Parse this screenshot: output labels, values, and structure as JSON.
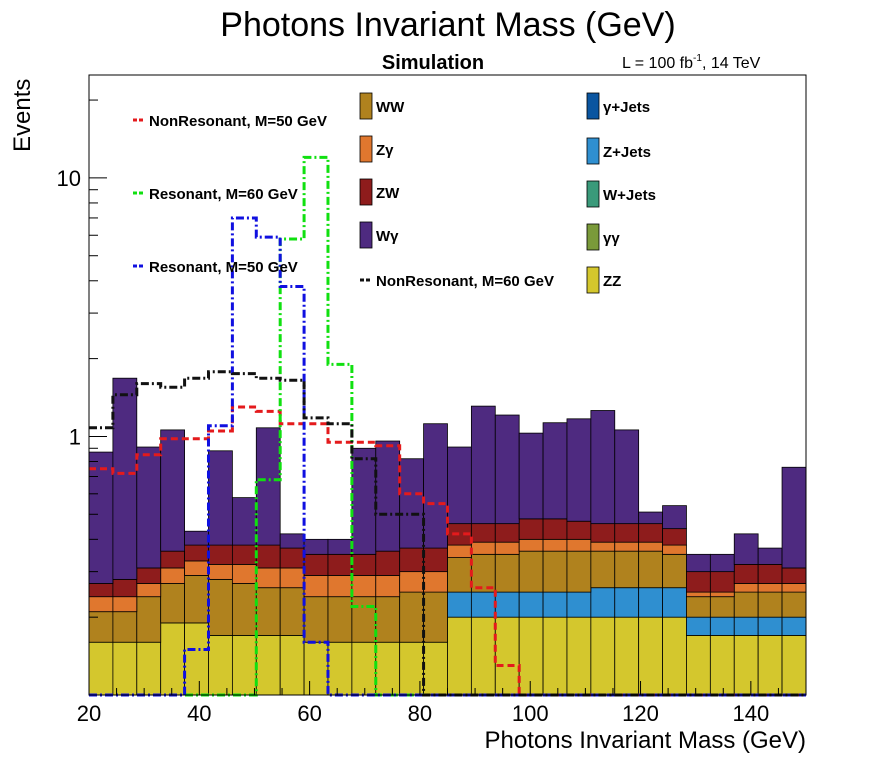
{
  "chart_data": {
    "type": "bar",
    "stacked": true,
    "title": "Photons Invariant Mass (GeV)",
    "subtitle": "Simulation",
    "lumi_label": "L = 100 fb",
    "lumi_sup": "-1",
    "lumi_rest": ", 14 TeV",
    "xlabel": "Photons Invariant Mass (GeV)",
    "ylabel": "Events",
    "xlim": [
      20,
      150
    ],
    "ylim": [
      0.1,
      25
    ],
    "yscale": "log",
    "bin_width": 4.333,
    "x_ticks": [
      20,
      40,
      60,
      80,
      100,
      120,
      140
    ],
    "y_ticks": [
      {
        "value": 1,
        "label": "1"
      },
      {
        "value": 10,
        "label": "10"
      }
    ],
    "grid": false,
    "legend_placement": "top",
    "stack_series": [
      {
        "name": "ZZ",
        "color": "#d4c72d",
        "values": [
          0.16,
          0.16,
          0.16,
          0.19,
          0.19,
          0.17,
          0.17,
          0.17,
          0.17,
          0.16,
          0.16,
          0.16,
          0.16,
          0.16,
          0.16,
          0.2,
          0.2,
          0.2,
          0.2,
          0.2,
          0.2,
          0.2,
          0.2,
          0.2,
          0.2,
          0.17,
          0.17,
          0.17,
          0.17,
          0.17
        ]
      },
      {
        "name": "γγ",
        "color": "#7a9a3a",
        "values": [
          0,
          0,
          0,
          0,
          0,
          0,
          0,
          0,
          0,
          0,
          0,
          0,
          0,
          0,
          0,
          0,
          0,
          0,
          0,
          0,
          0,
          0,
          0,
          0,
          0,
          0,
          0,
          0,
          0,
          0
        ]
      },
      {
        "name": "W+Jets",
        "color": "#3a9a7a",
        "values": [
          0,
          0,
          0,
          0,
          0,
          0,
          0,
          0,
          0,
          0,
          0,
          0,
          0,
          0,
          0,
          0,
          0,
          0,
          0,
          0,
          0,
          0,
          0,
          0,
          0,
          0,
          0,
          0,
          0,
          0
        ]
      },
      {
        "name": "Z+Jets",
        "color": "#2f8fd0",
        "values": [
          0,
          0,
          0,
          0,
          0,
          0,
          0,
          0,
          0,
          0,
          0,
          0,
          0,
          0,
          0,
          0.05,
          0.05,
          0.05,
          0.05,
          0.05,
          0.05,
          0.06,
          0.06,
          0.06,
          0.06,
          0.03,
          0.03,
          0.03,
          0.03,
          0.03
        ]
      },
      {
        "name": "γ+Jets",
        "color": "#0a55a0",
        "values": [
          0,
          0,
          0,
          0,
          0,
          0,
          0,
          0,
          0,
          0,
          0,
          0,
          0,
          0,
          0,
          0,
          0,
          0,
          0,
          0,
          0,
          0,
          0,
          0,
          0,
          0,
          0,
          0,
          0,
          0
        ]
      },
      {
        "name": "WW",
        "color": "#b0821e",
        "values": [
          0.05,
          0.05,
          0.08,
          0.08,
          0.1,
          0.11,
          0.1,
          0.09,
          0.09,
          0.08,
          0.08,
          0.08,
          0.08,
          0.09,
          0.09,
          0.09,
          0.1,
          0.1,
          0.11,
          0.11,
          0.11,
          0.1,
          0.1,
          0.1,
          0.09,
          0.04,
          0.04,
          0.05,
          0.05,
          0.05
        ]
      },
      {
        "name": "Zγ",
        "color": "#e0772e",
        "values": [
          0.03,
          0.03,
          0.03,
          0.04,
          0.04,
          0.04,
          0.05,
          0.05,
          0.05,
          0.05,
          0.05,
          0.05,
          0.05,
          0.05,
          0.05,
          0.04,
          0.04,
          0.04,
          0.04,
          0.04,
          0.04,
          0.03,
          0.03,
          0.03,
          0.03,
          0.01,
          0.01,
          0.02,
          0.02,
          0.02
        ]
      },
      {
        "name": "ZW",
        "color": "#8e1c1c",
        "values": [
          0.03,
          0.04,
          0.04,
          0.05,
          0.05,
          0.06,
          0.06,
          0.07,
          0.06,
          0.06,
          0.06,
          0.06,
          0.07,
          0.07,
          0.07,
          0.08,
          0.07,
          0.07,
          0.08,
          0.08,
          0.07,
          0.07,
          0.07,
          0.07,
          0.06,
          0.05,
          0.05,
          0.05,
          0.05,
          0.04
        ]
      },
      {
        "name": "Wγ",
        "color": "#4e2a80",
        "values": [
          0.6,
          1.4,
          0.6,
          0.7,
          0.05,
          0.5,
          0.2,
          0.7,
          0.05,
          0.05,
          0.05,
          0.55,
          0.6,
          0.45,
          0.75,
          0.45,
          0.85,
          0.75,
          0.55,
          0.65,
          0.7,
          0.8,
          0.6,
          0.05,
          0.1,
          0.05,
          0.05,
          0.1,
          0.05,
          0.45
        ]
      }
    ],
    "line_series": [
      {
        "name": "NonResonant, M=50 GeV",
        "color": "#e41a1c",
        "dash": "7,4",
        "values": [
          0.75,
          0.72,
          0.85,
          0.98,
          0.98,
          1.05,
          1.3,
          1.25,
          1.12,
          1.12,
          0.95,
          0.95,
          0.92,
          0.6,
          0.55,
          0.42,
          0.26,
          0.13,
          0.1,
          0.1,
          0.1,
          0.1,
          0.1,
          0.1,
          0.1,
          0.1,
          0.1,
          0.1,
          0.1,
          0.1
        ]
      },
      {
        "name": "Resonant, M=60 GeV",
        "color": "#10e010",
        "dash": "8,3,2,3",
        "values": [
          0.1,
          0.1,
          0.1,
          0.1,
          0.1,
          0.1,
          0.1,
          0.68,
          5.8,
          12.0,
          1.9,
          0.22,
          0.1,
          0.1,
          0.1,
          0.1,
          0.1,
          0.1,
          0.1,
          0.1,
          0.1,
          0.1,
          0.1,
          0.1,
          0.1,
          0.1,
          0.1,
          0.1,
          0.1,
          0.1
        ]
      },
      {
        "name": "Resonant, M=50 GeV",
        "color": "#1010e0",
        "dash": "8,3,2,3",
        "values": [
          0.1,
          0.1,
          0.1,
          0.1,
          0.15,
          1.1,
          7.0,
          5.9,
          3.8,
          0.16,
          0.1,
          0.1,
          0.1,
          0.1,
          0.1,
          0.1,
          0.1,
          0.1,
          0.1,
          0.1,
          0.1,
          0.1,
          0.1,
          0.1,
          0.1,
          0.1,
          0.1,
          0.1,
          0.1,
          0.1
        ]
      },
      {
        "name": "NonResonant, M=60 GeV",
        "color": "#111111",
        "dash": "8,3,2,3",
        "values": [
          1.08,
          1.45,
          1.6,
          1.55,
          1.68,
          1.78,
          1.75,
          1.68,
          1.65,
          1.18,
          1.12,
          0.82,
          0.5,
          0.5,
          0.1,
          0.1,
          0.1,
          0.1,
          0.1,
          0.1,
          0.1,
          0.1,
          0.1,
          0.1,
          0.1,
          0.1,
          0.1,
          0.1,
          0.1,
          0.1
        ]
      }
    ]
  }
}
